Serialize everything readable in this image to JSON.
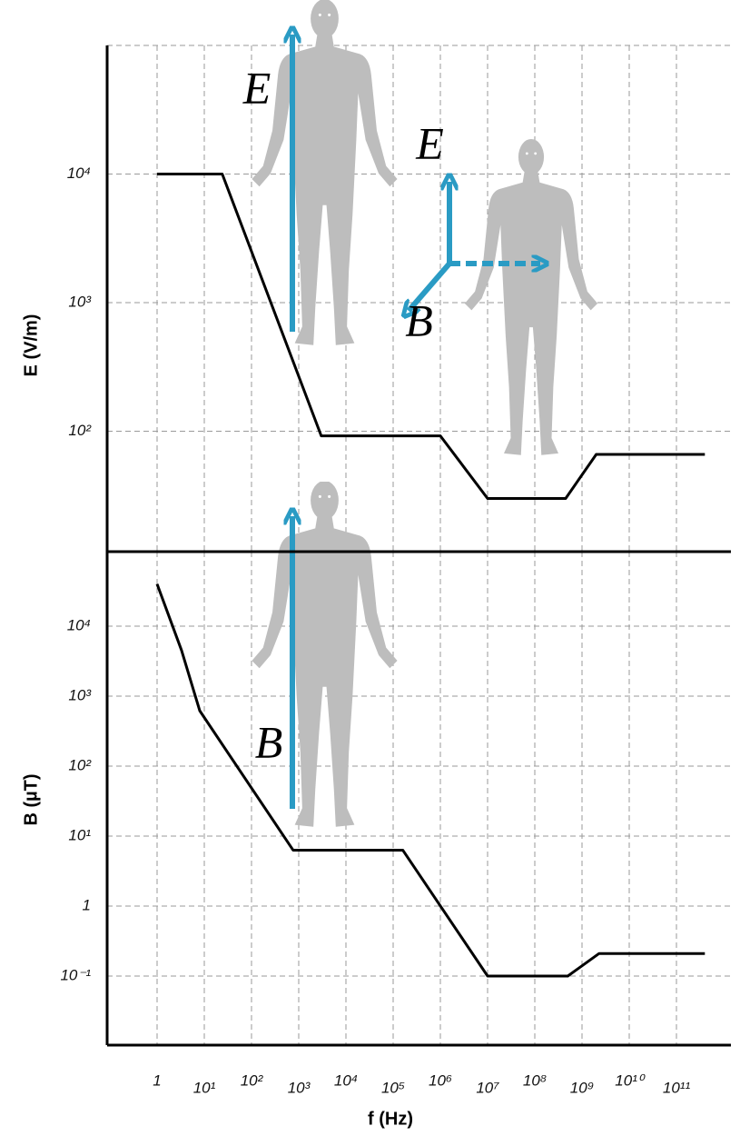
{
  "chart_data": [
    {
      "type": "line",
      "ylabel": "E (V/m)",
      "xscale": "log",
      "yscale": "log",
      "grid": true,
      "xlim": [
        0.1,
        1000000000000
      ],
      "ylim": [
        10,
        100000
      ],
      "yticks": [
        {
          "value": 100,
          "label": "10²"
        },
        {
          "value": 1000,
          "label": "10³"
        },
        {
          "value": 10000,
          "label": "10⁴"
        }
      ],
      "annotations": [
        "E",
        "E⃗",
        "B⃗"
      ],
      "series": [
        {
          "color": "#000000",
          "x": [
            1,
            24,
            3000,
            1000000,
            10000000,
            450000000,
            2000000000,
            400000000000
          ],
          "values": [
            10000,
            10000,
            92,
            92,
            30,
            30,
            66,
            66
          ]
        }
      ]
    },
    {
      "type": "line",
      "ylabel": "B (µT)",
      "xlabel": "f (Hz)",
      "xscale": "log",
      "yscale": "log",
      "grid": true,
      "xlim": [
        0.1,
        1000000000000
      ],
      "ylim": [
        0.01,
        100000
      ],
      "xticks": [
        1,
        {
          "value": 10,
          "label": "10¹"
        },
        {
          "value": 100,
          "label": "10²"
        },
        {
          "value": 1000,
          "label": "10³"
        },
        {
          "value": 10000,
          "label": "10⁴"
        },
        {
          "value": 100000,
          "label": "10⁵"
        },
        {
          "value": 1000000,
          "label": "10⁶"
        },
        {
          "value": 10000000,
          "label": "10⁷"
        },
        {
          "value": 100000000,
          "label": "10⁸"
        },
        {
          "value": 1000000000,
          "label": "10⁹"
        },
        {
          "value": 10000000000,
          "label": "10¹⁰"
        },
        {
          "value": 100000000000,
          "label": "10¹¹"
        }
      ],
      "yticks": [
        {
          "value": 0.1,
          "label": "10⁻¹"
        },
        1,
        {
          "value": 10,
          "label": "10¹"
        },
        {
          "value": 100,
          "label": "10²"
        },
        {
          "value": 1000,
          "label": "10³"
        },
        {
          "value": 10000,
          "label": "10⁴"
        }
      ],
      "annotations": [
        "B"
      ],
      "series": [
        {
          "color": "#000000",
          "x": [
            1,
            3.3,
            8,
            760,
            160000,
            10000000,
            500000000,
            2300000000,
            400000000000
          ],
          "values": [
            40000,
            4500,
            620,
            6.3,
            6.3,
            0.1,
            0.1,
            0.21,
            0.21
          ]
        }
      ]
    }
  ]
}
